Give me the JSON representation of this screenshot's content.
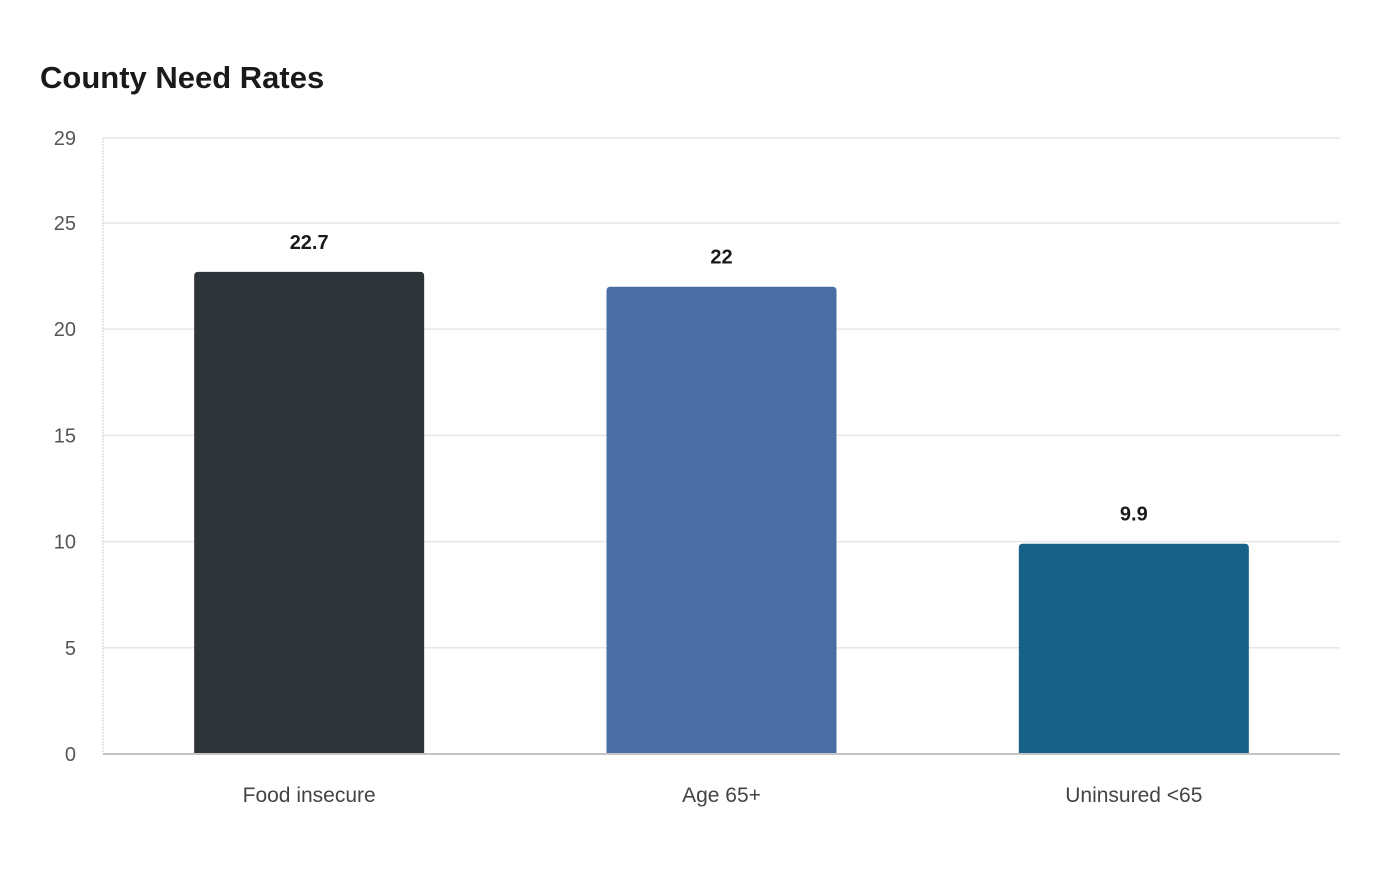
{
  "chart_data": {
    "type": "bar",
    "title": "County Need Rates",
    "xlabel": "",
    "ylabel": "",
    "categories": [
      "Food insecure",
      "Age 65+",
      "Uninsured <65"
    ],
    "values": [
      22.7,
      22,
      9.9
    ],
    "value_labels": [
      "22.7",
      "22",
      "9.9"
    ],
    "bar_colors": [
      "#2e3538",
      "#4a6ea3",
      "#176087"
    ],
    "ylim": [
      0,
      29
    ],
    "yticks": [
      0,
      5,
      10,
      15,
      20,
      25,
      29
    ],
    "grid": true,
    "legend": "none"
  }
}
